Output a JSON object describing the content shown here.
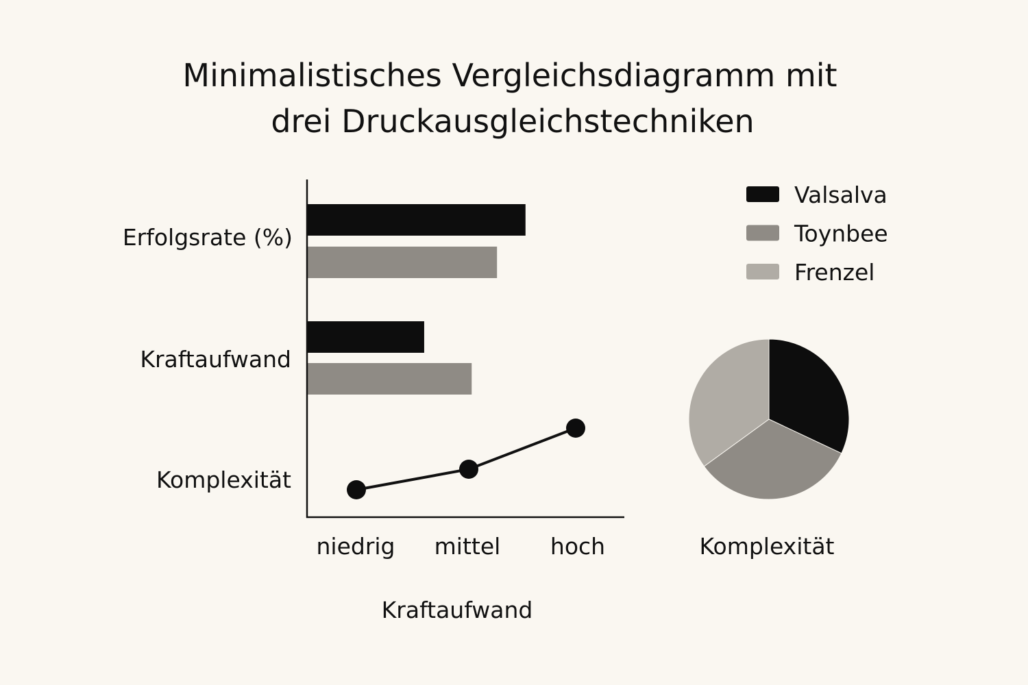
{
  "chart_data": {
    "title_lines": [
      "Minimalistisches Vergleichsdiagramm mit",
      "drei Druckausgleichstechniken"
    ],
    "colors": {
      "Valsalva": "#0d0d0d",
      "Toynbee": "#8f8b85",
      "Frenzel": "#b0aca5",
      "background": "#faf7f1"
    },
    "legend": {
      "placement": "top-right",
      "entries": [
        "Valsalva",
        "Toynbee",
        "Frenzel"
      ]
    },
    "bar_chart": {
      "type": "bar",
      "orientation": "horizontal",
      "categories": [
        "Erfolgsrate (%)",
        "Kraftaufwand"
      ],
      "value_scale": "relative (no numeric axis shown)",
      "series": [
        {
          "name": "Valsalva",
          "values": [
            0.69,
            0.37
          ]
        },
        {
          "name": "Toynbee",
          "values": [
            0.6,
            0.52
          ]
        }
      ]
    },
    "line_chart": {
      "type": "line",
      "row_label": "Komplexität",
      "x_ticks": [
        "niedrig",
        "mittel",
        "hoch"
      ],
      "xlabel": "Kraftaufwand",
      "values": [
        0.1,
        0.3,
        0.7
      ]
    },
    "pie_chart": {
      "type": "pie",
      "label": "Komplexität",
      "slices": [
        {
          "name": "Valsalva",
          "value": 32
        },
        {
          "name": "Toynbee",
          "value": 33
        },
        {
          "name": "Frenzel",
          "value": 35
        }
      ]
    },
    "grid": false
  }
}
